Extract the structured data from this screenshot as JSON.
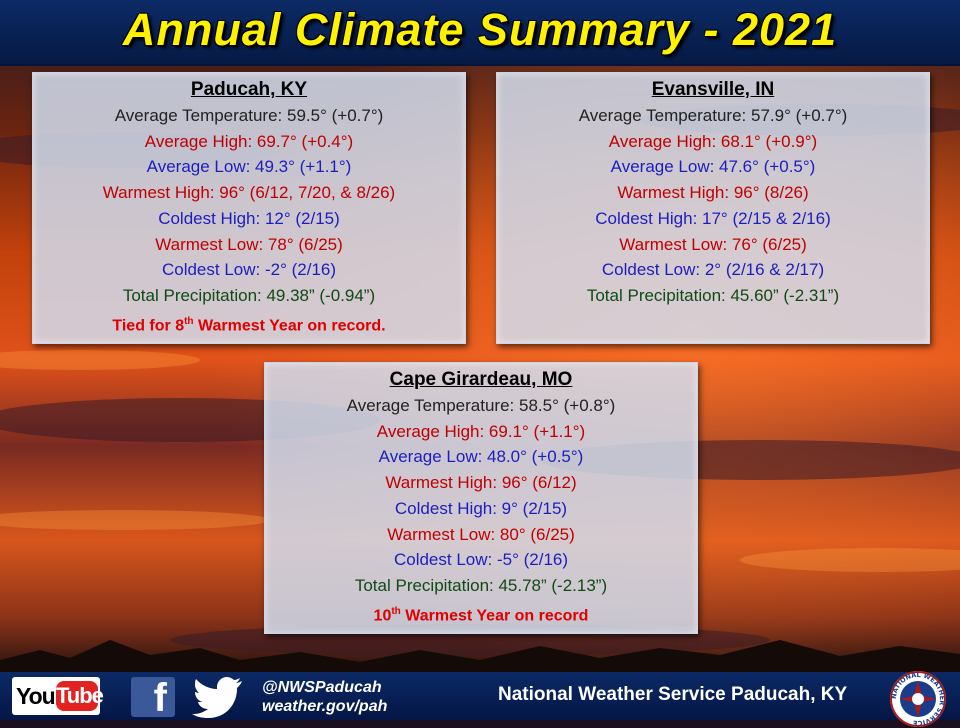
{
  "header": {
    "title": "Annual Climate Summary - 2021"
  },
  "cards": [
    {
      "city": "Paducah, KY",
      "rows": [
        "Average Temperature: 59.5° (+0.7°)",
        "Average High: 69.7° (+0.4°)",
        "Average Low: 49.3° (+1.1°)",
        "Warmest High: 96° (6/12, 7/20, & 8/26)",
        "Coldest High: 12° (2/15)",
        "Warmest Low: 78° (6/25)",
        "Coldest Low: -2° (2/16)",
        "Total Precipitation: 49.38” (-0.94”)"
      ],
      "note": {
        "before": "Tied for 8",
        "sup": "th",
        "after": " Warmest Year on record."
      }
    },
    {
      "city": "Evansville, IN",
      "rows": [
        "Average Temperature: 57.9° (+0.7°)",
        "Average High: 68.1° (+0.9°)",
        "Average Low: 47.6° (+0.5°)",
        "Warmest High: 96° (8/26)",
        "Coldest High: 17° (2/15 & 2/16)",
        "Warmest Low: 76° (6/25)",
        "Coldest Low: 2° (2/16 & 2/17)",
        "Total Precipitation: 45.60” (-2.31”)"
      ]
    },
    {
      "city": "Cape Girardeau, MO",
      "rows": [
        "Average Temperature: 58.5° (+0.8°)",
        "Average High: 69.1° (+1.1°)",
        "Average Low: 48.0° (+0.5°)",
        "Warmest High: 96° (6/12)",
        "Coldest High: 9° (2/15)",
        "Warmest Low: 80° (6/25)",
        "Coldest Low: -5° (2/16)",
        "Total Precipitation: 45.78” (-2.13”)"
      ],
      "note": {
        "before": "10",
        "sup": "th",
        "after": " Warmest Year on record"
      }
    }
  ],
  "colors": {
    "title": "#fff200",
    "avg_temp": "#222222",
    "warm": "#c00000",
    "cold": "#1d1dbf",
    "precip": "#0f4a16",
    "note": "#e00000"
  },
  "footer": {
    "youtube_you": "You",
    "youtube_tube": "Tube",
    "facebook_glyph": "f",
    "handle": "@NWSPaducah",
    "website": "weather.gov/pah",
    "office": "National Weather Service Paducah, KY",
    "icons": [
      "youtube-icon",
      "facebook-icon",
      "twitter-icon",
      "nws-logo-icon"
    ]
  },
  "logo_ring_text": "NATIONAL WEATHER SERVICE"
}
